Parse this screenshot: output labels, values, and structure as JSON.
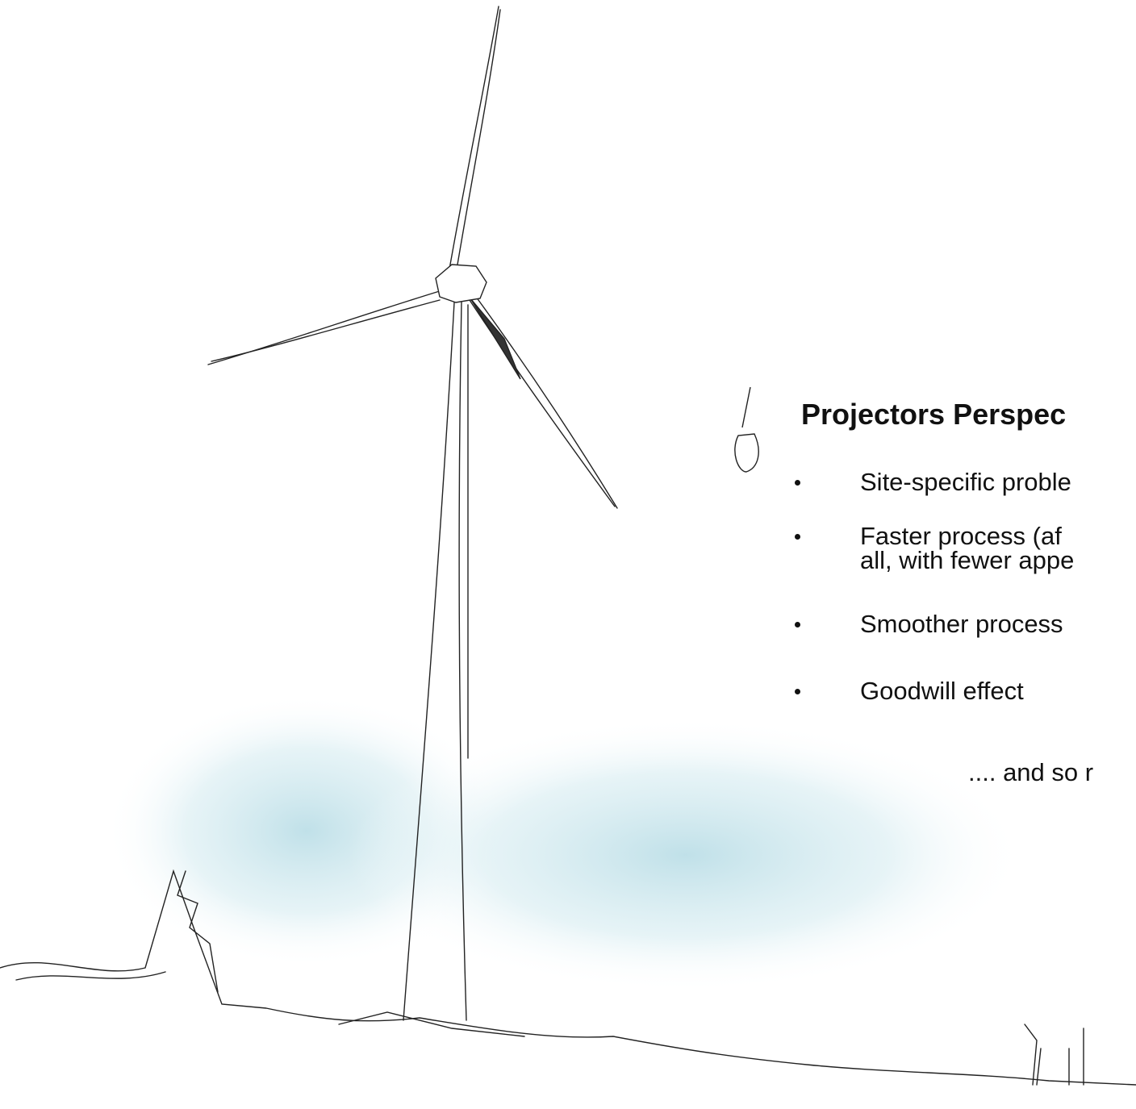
{
  "heading": "Projectors Perspec",
  "bullets": [
    {
      "lines": [
        "Site-specific proble"
      ]
    },
    {
      "lines": [
        "Faster process (af",
        "all, with fewer appe"
      ]
    },
    {
      "lines": [
        "Smoother process"
      ]
    },
    {
      "lines": [
        "Goodwill effect"
      ]
    }
  ],
  "closing": ".... and so r"
}
